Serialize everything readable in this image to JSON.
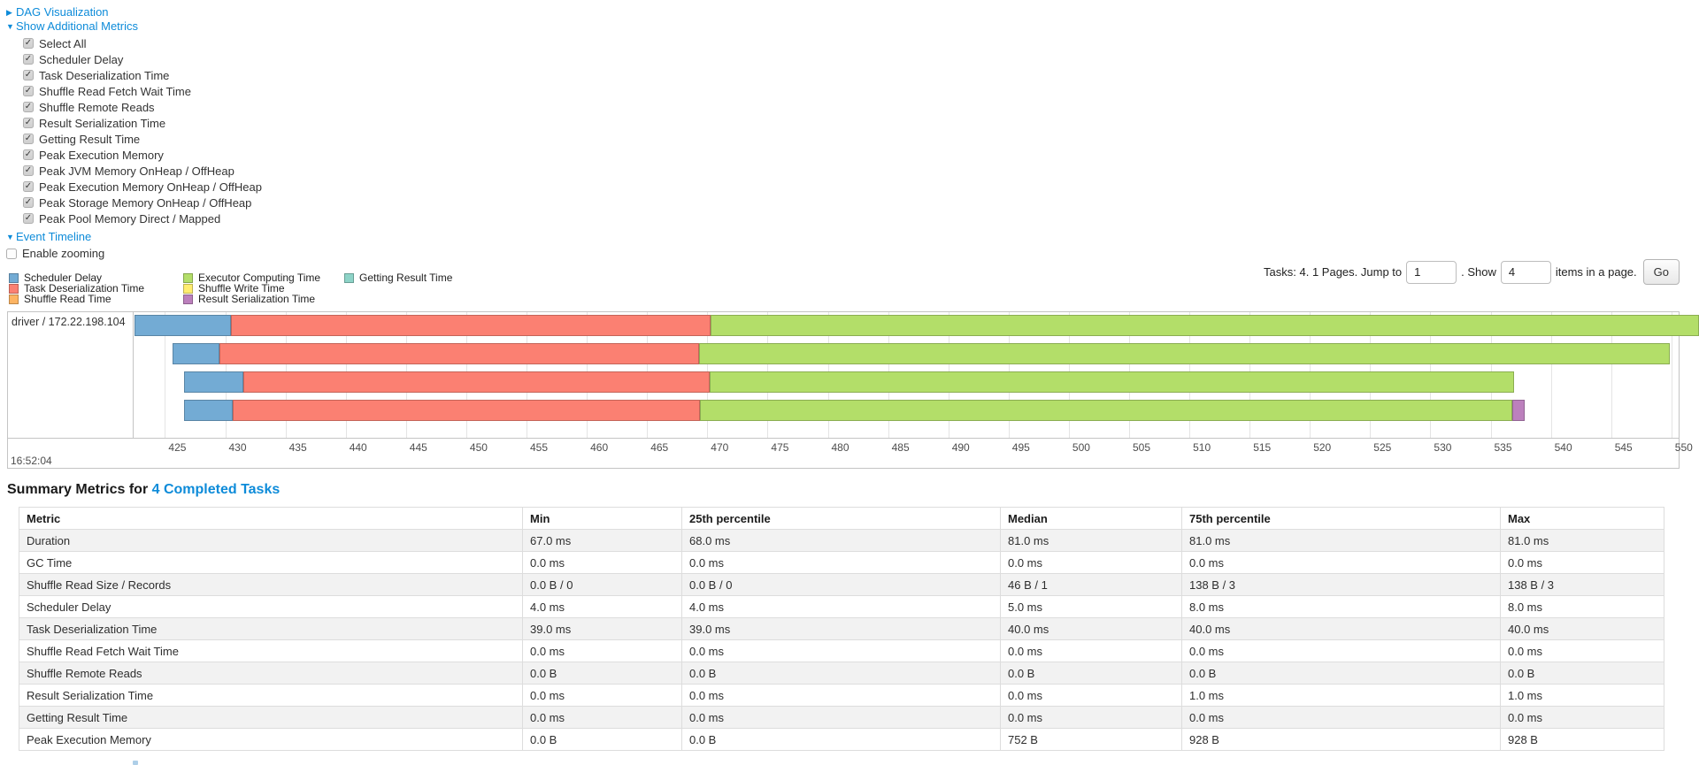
{
  "controls": {
    "dag_link": "DAG Visualization",
    "metrics_link": "Show Additional Metrics",
    "metrics_checkboxes": [
      "Select All",
      "Scheduler Delay",
      "Task Deserialization Time",
      "Shuffle Read Fetch Wait Time",
      "Shuffle Remote Reads",
      "Result Serialization Time",
      "Getting Result Time",
      "Peak Execution Memory",
      "Peak JVM Memory OnHeap / OffHeap",
      "Peak Execution Memory OnHeap / OffHeap",
      "Peak Storage Memory OnHeap / OffHeap",
      "Peak Pool Memory Direct / Mapped"
    ],
    "event_timeline_link": "Event Timeline",
    "enable_zooming_label": "Enable zooming",
    "check_glyph": "✓"
  },
  "pagination": {
    "summary_text": "Tasks: 4. 1 Pages. Jump to",
    "jump_value": "1",
    "show_label": ". Show",
    "show_value": "4",
    "items_label": "items in a page.",
    "go_label": "Go"
  },
  "colors": {
    "link": "#0d8bd9",
    "scheduler-delay": "#73ABD4",
    "task-deserialization": "#FB8072",
    "shuffle-read": "#FDB462",
    "executor-computing": "#B3DE69",
    "shuffle-write": "#FFED6F",
    "result-serialization": "#BC80BD",
    "getting-result": "#8DD3C7"
  },
  "legend": {
    "columns": [
      [
        {
          "key": "scheduler-delay",
          "label": "Scheduler Delay"
        },
        {
          "key": "task-deserialization",
          "label": "Task Deserialization Time"
        },
        {
          "key": "shuffle-read",
          "label": "Shuffle Read Time"
        }
      ],
      [
        {
          "key": "executor-computing",
          "label": "Executor Computing Time"
        },
        {
          "key": "shuffle-write",
          "label": "Shuffle Write Time"
        },
        {
          "key": "result-serialization",
          "label": "Result Serialization Time"
        }
      ],
      [
        {
          "key": "getting-result",
          "label": "Getting Result Time"
        }
      ]
    ]
  },
  "chart_data": {
    "type": "timeline-gantt",
    "group_label": "driver / 172.22.198.104",
    "axis": {
      "min_ms": 422.4,
      "max_ms": 550.6,
      "tick_first": 425,
      "tick_step": 5,
      "tick_last": 550,
      "major_label": "16:52:04"
    },
    "tasks": [
      {
        "start_ms": 422.5,
        "segments": [
          [
            "scheduler-delay",
            8.0
          ],
          [
            "task-deserialization",
            39.8
          ],
          [
            "executor-computing",
            82.0
          ]
        ]
      },
      {
        "start_ms": 425.6,
        "segments": [
          [
            "scheduler-delay",
            3.95
          ],
          [
            "task-deserialization",
            39.8
          ],
          [
            "executor-computing",
            80.5
          ]
        ]
      },
      {
        "start_ms": 426.6,
        "segments": [
          [
            "scheduler-delay",
            4.9
          ],
          [
            "task-deserialization",
            38.7
          ],
          [
            "executor-computing",
            66.75
          ]
        ]
      },
      {
        "start_ms": 426.6,
        "segments": [
          [
            "scheduler-delay",
            4.0
          ],
          [
            "task-deserialization",
            38.8
          ],
          [
            "executor-computing",
            67.4
          ],
          [
            "result-serialization",
            1.05
          ]
        ]
      }
    ]
  },
  "summary": {
    "title_prefix": "Summary Metrics for ",
    "title_link": "4 Completed Tasks",
    "table": {
      "columns": [
        "Metric",
        "Min",
        "25th percentile",
        "Median",
        "75th percentile",
        "Max"
      ],
      "rows": [
        {
          "metric": "Duration",
          "values": [
            "67.0 ms",
            "68.0 ms",
            "81.0 ms",
            "81.0 ms",
            "81.0 ms"
          ]
        },
        {
          "metric": "GC Time",
          "values": [
            "0.0 ms",
            "0.0 ms",
            "0.0 ms",
            "0.0 ms",
            "0.0 ms"
          ]
        },
        {
          "metric": "Shuffle Read Size / Records",
          "values": [
            "0.0 B / 0",
            "0.0 B / 0",
            "46 B / 1",
            "138 B / 3",
            "138 B / 3"
          ]
        },
        {
          "metric": "Scheduler Delay",
          "values": [
            "4.0 ms",
            "4.0 ms",
            "5.0 ms",
            "8.0 ms",
            "8.0 ms"
          ]
        },
        {
          "metric": "Task Deserialization Time",
          "values": [
            "39.0 ms",
            "39.0 ms",
            "40.0 ms",
            "40.0 ms",
            "40.0 ms"
          ]
        },
        {
          "metric": "Shuffle Read Fetch Wait Time",
          "values": [
            "0.0 ms",
            "0.0 ms",
            "0.0 ms",
            "0.0 ms",
            "0.0 ms"
          ]
        },
        {
          "metric": "Shuffle Remote Reads",
          "values": [
            "0.0 B",
            "0.0 B",
            "0.0 B",
            "0.0 B",
            "0.0 B"
          ]
        },
        {
          "metric": "Result Serialization Time",
          "values": [
            "0.0 ms",
            "0.0 ms",
            "0.0 ms",
            "1.0 ms",
            "1.0 ms"
          ]
        },
        {
          "metric": "Getting Result Time",
          "values": [
            "0.0 ms",
            "0.0 ms",
            "0.0 ms",
            "0.0 ms",
            "0.0 ms"
          ]
        },
        {
          "metric": "Peak Execution Memory",
          "values": [
            "0.0 B",
            "0.0 B",
            "752 B",
            "928 B",
            "928 B"
          ]
        }
      ]
    }
  }
}
